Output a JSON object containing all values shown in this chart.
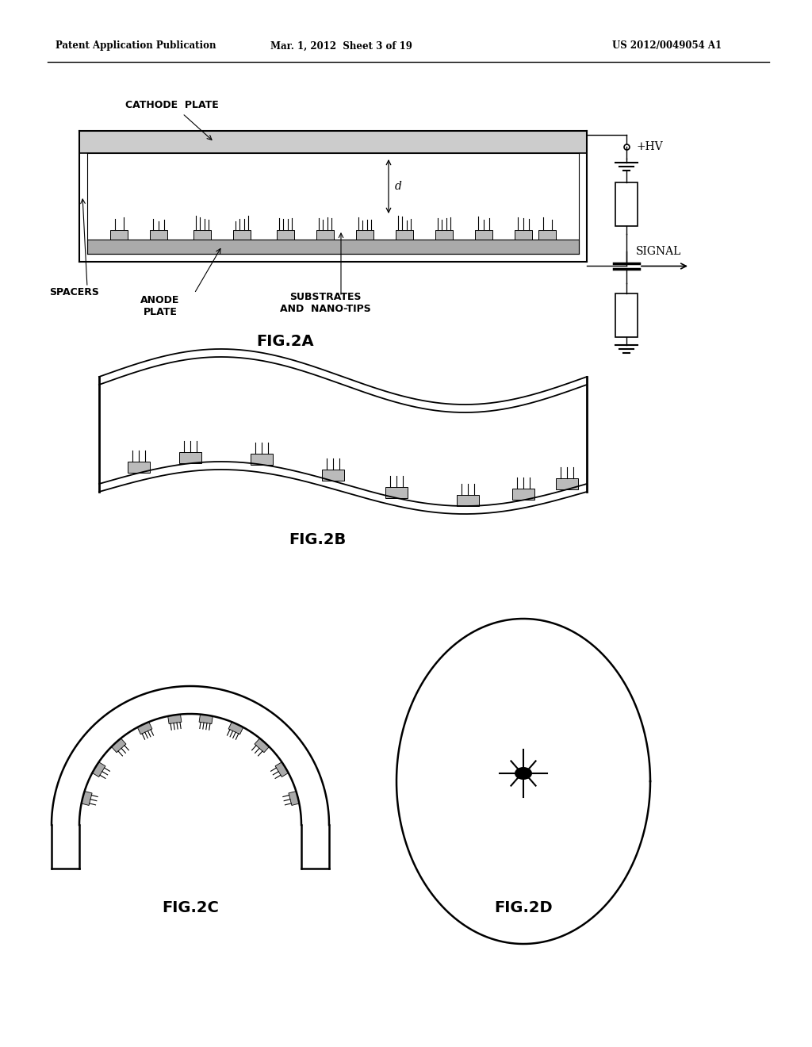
{
  "bg_color": "#ffffff",
  "text_color": "#000000",
  "header_left": "Patent Application Publication",
  "header_mid": "Mar. 1, 2012  Sheet 3 of 19",
  "header_right": "US 2012/0049054 A1",
  "fig2a_label": "FIG.2A",
  "fig2b_label": "FIG.2B",
  "fig2c_label": "FIG.2C",
  "fig2d_label": "FIG.2D",
  "label_cathode": "CATHODE  PLATE",
  "label_spacers": "SPACERS",
  "label_anode": "ANODE\nPLATE",
  "label_substrates": "SUBSTRATES\nAND  NANO-TIPS",
  "label_hv": "+HV",
  "label_signal": "SIGNAL"
}
